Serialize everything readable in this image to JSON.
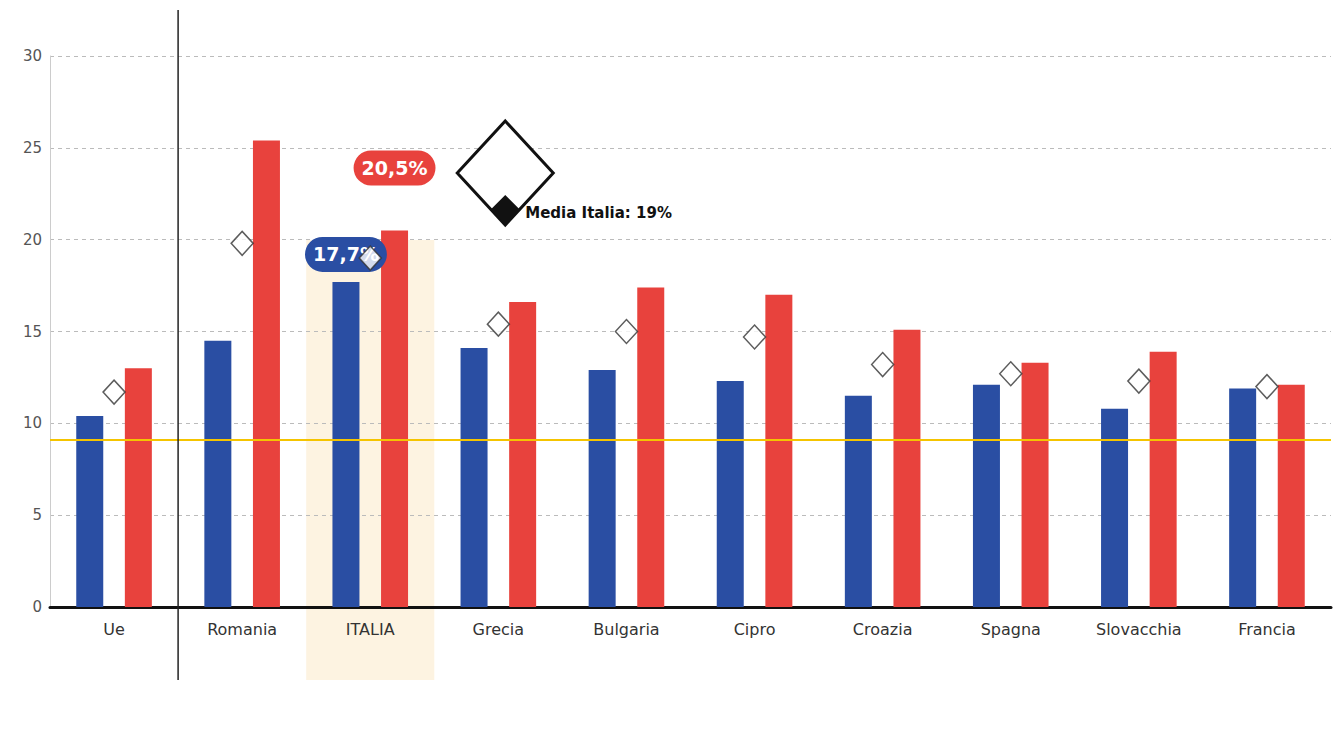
{
  "chart_data": {
    "type": "bar",
    "categories": [
      "Ue",
      "Romania",
      "ITALIA",
      "Grecia",
      "Bulgaria",
      "Cipro",
      "Croazia",
      "Spagna",
      "Slovacchia",
      "Francia"
    ],
    "series": [
      {
        "color": "#2a4ea3",
        "values": [
          10.4,
          14.5,
          17.7,
          14.1,
          12.9,
          12.3,
          11.5,
          12.1,
          10.8,
          11.9
        ],
        "value_labels": [
          null,
          null,
          "17,7%",
          null,
          null,
          null,
          null,
          null,
          null,
          null
        ]
      },
      {
        "color": "#e8423d",
        "values": [
          13.0,
          25.4,
          20.5,
          16.6,
          17.4,
          17.0,
          15.1,
          13.3,
          13.9,
          12.1
        ],
        "value_labels": [
          null,
          null,
          "20,5%",
          null,
          null,
          null,
          null,
          null,
          null,
          null
        ]
      },
      {
        "type": "scatter",
        "marker": "diamond",
        "color": "#ffffff",
        "values": [
          11.7,
          19.8,
          19.0,
          15.4,
          15.0,
          14.7,
          13.2,
          12.7,
          12.3,
          12.0
        ]
      }
    ],
    "ylim": [
      0,
      30
    ],
    "yticks": [
      0,
      5,
      10,
      15,
      20,
      25,
      30
    ],
    "grid": true,
    "reference_line": {
      "value": 9.1,
      "color": "#f5c400"
    },
    "annotations": [
      {
        "text": "Media Italia: 19%",
        "category": "ITALIA"
      }
    ]
  }
}
